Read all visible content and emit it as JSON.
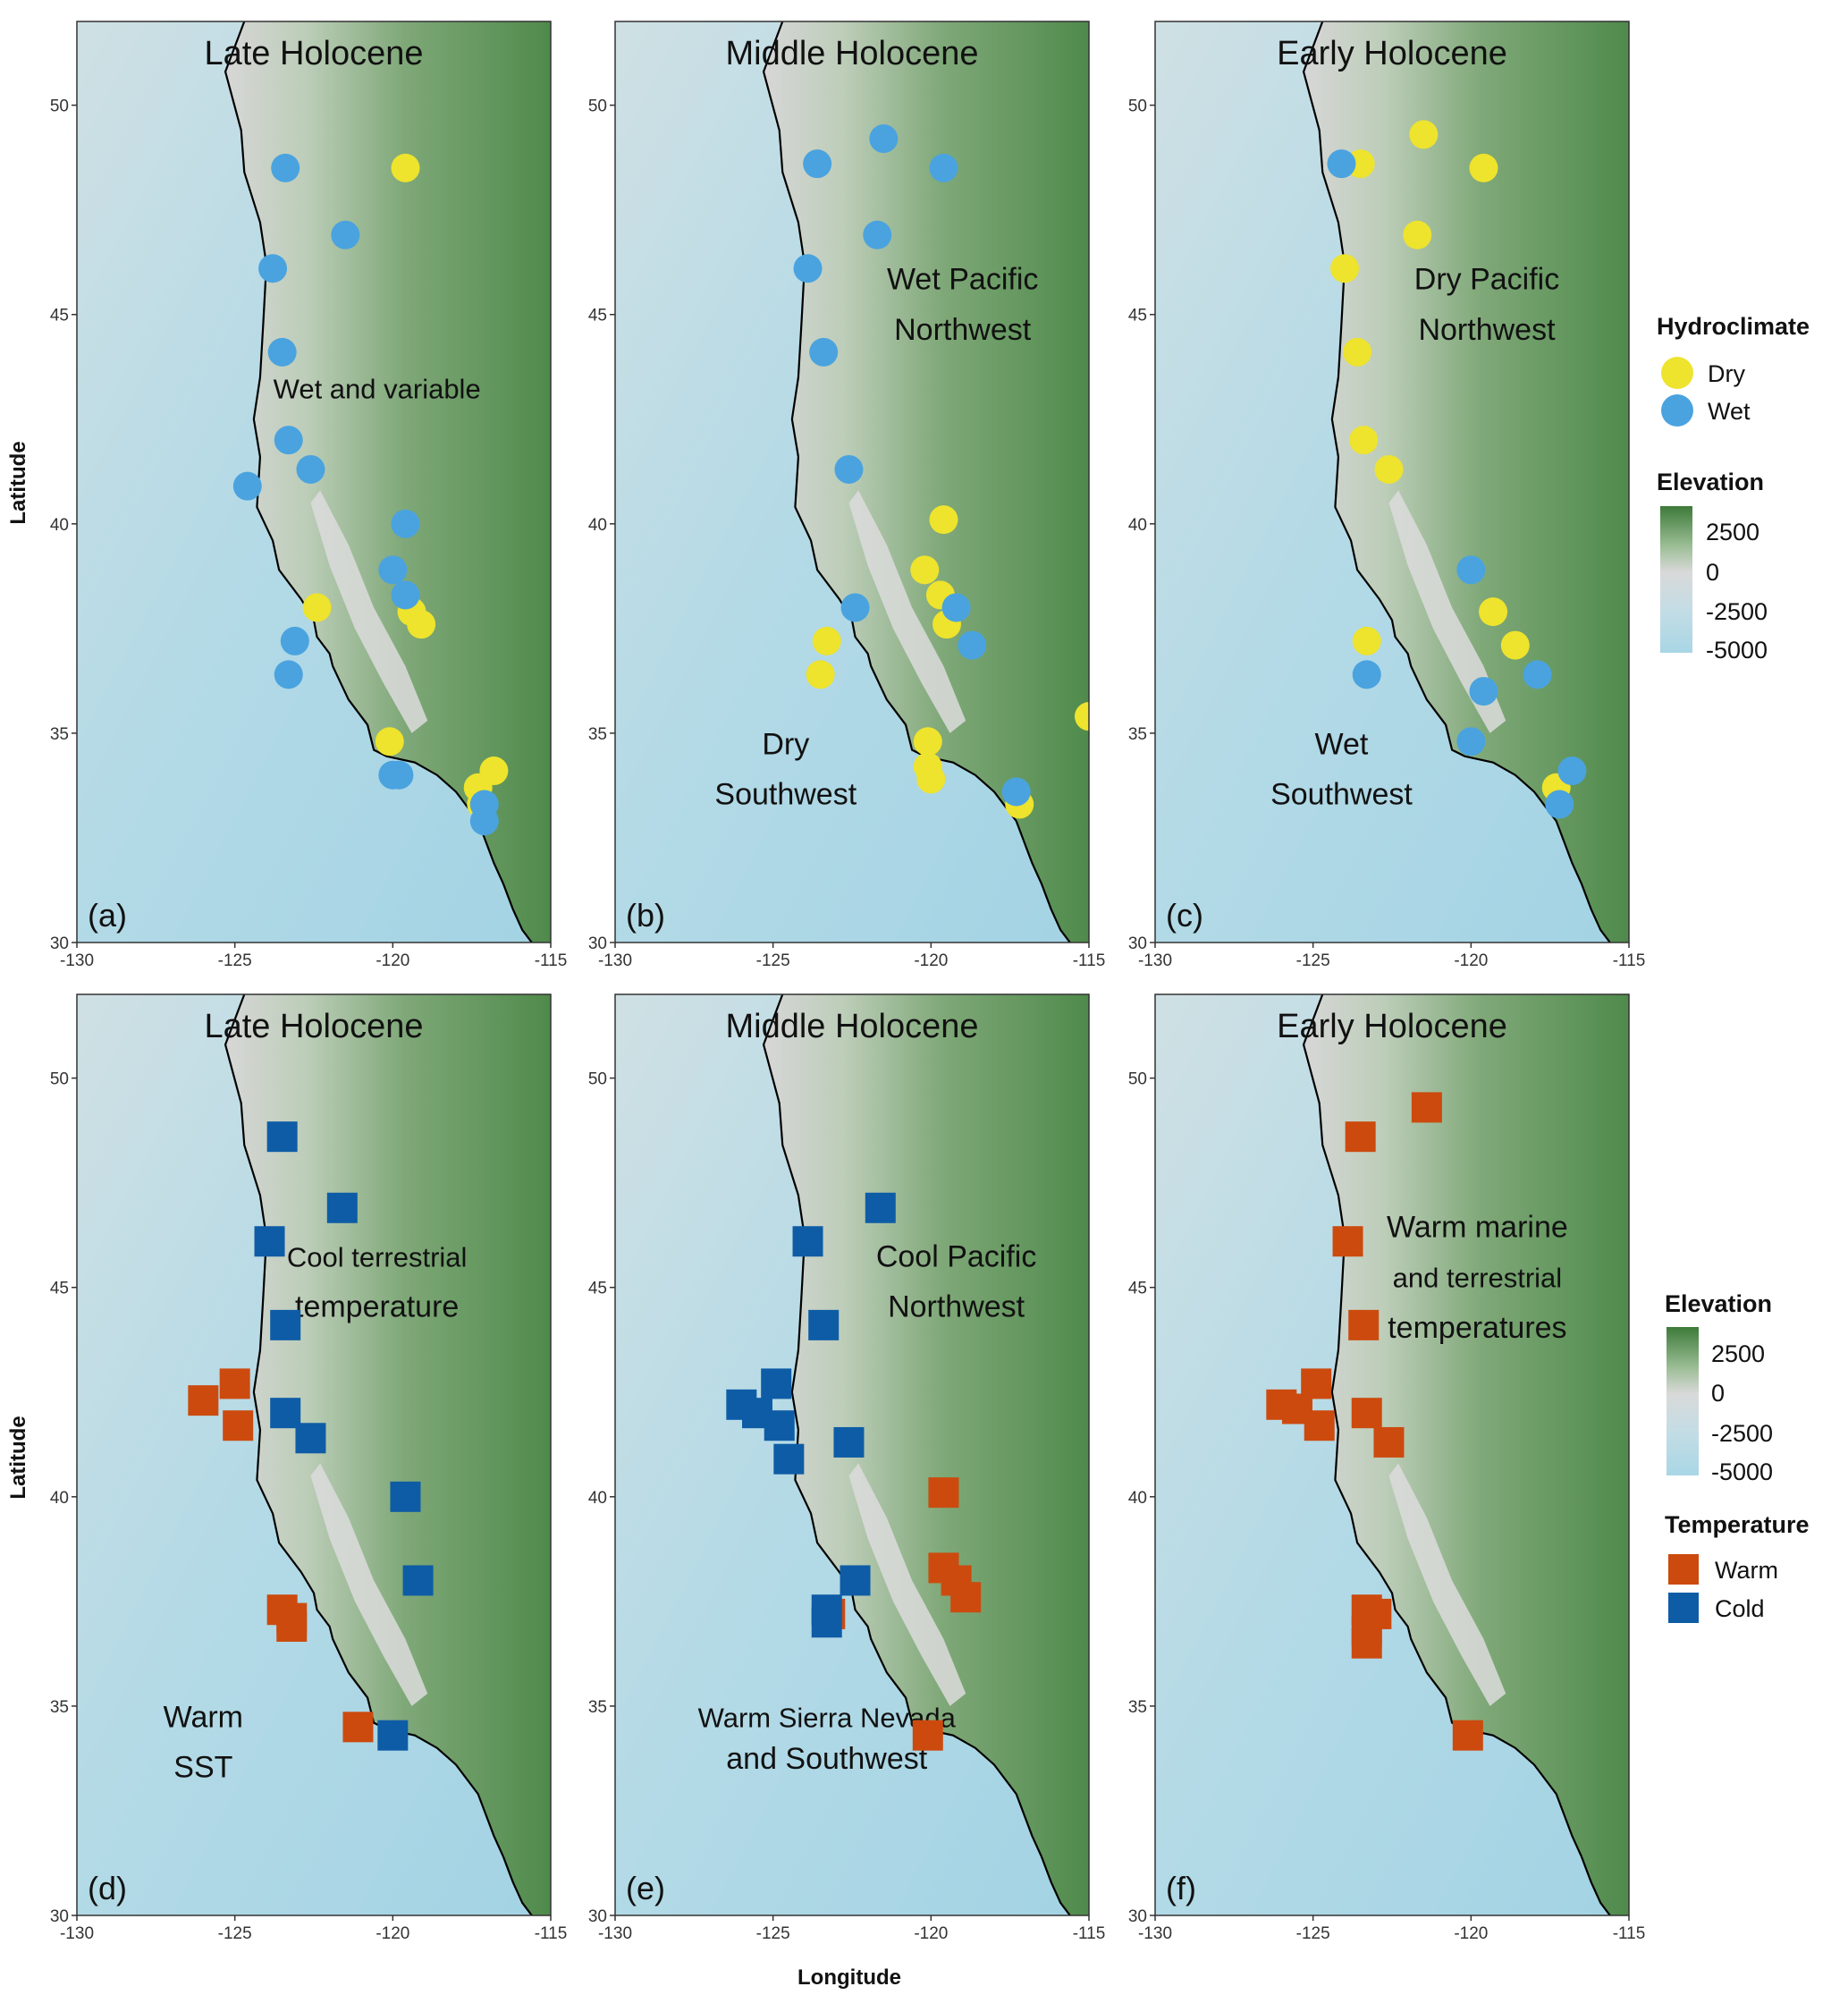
{
  "figure": {
    "y_axis_label": "Latitude",
    "x_axis_label": "Longitude",
    "x_ticks": [
      -130,
      -125,
      -120,
      -115
    ],
    "y_ticks": [
      30,
      35,
      40,
      45,
      50
    ],
    "x_range": [
      -130,
      -115
    ],
    "y_range": [
      30,
      52
    ],
    "panel_labels": [
      "(a)",
      "(b)",
      "(c)",
      "(d)",
      "(e)",
      "(f)"
    ],
    "colors": {
      "dry": "#EEE32D",
      "wet": "#4AA3DF",
      "warm": "#CC4A0E",
      "cold": "#0E5CA6",
      "land_high": "#3D7A39",
      "land_low": "#D9D9D9",
      "ocean": "#A9D6E5"
    }
  },
  "legends": {
    "top": {
      "hydro_title": "Hydroclimate",
      "hydro_items": [
        "Dry",
        "Wet"
      ],
      "elev_title": "Elevation",
      "elev_ticks": [
        "2500",
        "0",
        "-2500",
        "-5000"
      ]
    },
    "bottom": {
      "elev_title": "Elevation",
      "elev_ticks": [
        "2500",
        "0",
        "-2500",
        "-5000"
      ],
      "temp_title": "Temperature",
      "temp_items": [
        "Warm",
        "Cold"
      ]
    }
  },
  "chart_data": [
    {
      "type": "scatter",
      "panel": "(a)",
      "title": "Late Holocene",
      "annotations": [
        {
          "text": "Wet and variable",
          "lon": -120.5,
          "lat": 43.0
        }
      ],
      "series": [
        {
          "name": "Dry",
          "marker": "circle",
          "points": [
            [
              -119.6,
              48.5
            ],
            [
              -122.4,
              38.0
            ],
            [
              -119.1,
              37.6
            ],
            [
              -119.4,
              37.9
            ],
            [
              -120.1,
              34.8
            ],
            [
              -117.3,
              33.7
            ],
            [
              -116.8,
              34.1
            ],
            [
              -117.2,
              33.3
            ]
          ]
        },
        {
          "name": "Wet",
          "marker": "circle",
          "points": [
            [
              -123.4,
              48.5
            ],
            [
              -121.5,
              46.9
            ],
            [
              -123.8,
              46.1
            ],
            [
              -123.5,
              44.1
            ],
            [
              -123.3,
              42.0
            ],
            [
              -122.6,
              41.3
            ],
            [
              -124.6,
              40.9
            ],
            [
              -119.6,
              40.0
            ],
            [
              -120.0,
              38.9
            ],
            [
              -119.6,
              38.3
            ],
            [
              -123.1,
              37.2
            ],
            [
              -123.3,
              36.4
            ],
            [
              -120.0,
              34.0
            ],
            [
              -119.8,
              34.0
            ],
            [
              -117.1,
              33.3
            ],
            [
              -117.1,
              32.9
            ]
          ]
        }
      ]
    },
    {
      "type": "scatter",
      "panel": "(b)",
      "title": "Middle Holocene",
      "annotations": [
        {
          "text": "Wet Pacific",
          "lon": -119.0,
          "lat": 45.6
        },
        {
          "text": "Northwest",
          "lon": -119.0,
          "lat": 44.4
        },
        {
          "text": "Dry",
          "lon": -124.6,
          "lat": 34.5
        },
        {
          "text": "Southwest",
          "lon": -124.6,
          "lat": 33.3
        }
      ],
      "series": [
        {
          "name": "Dry",
          "marker": "circle",
          "points": [
            [
              -119.6,
              40.1
            ],
            [
              -120.2,
              38.9
            ],
            [
              -119.7,
              38.3
            ],
            [
              -119.5,
              37.6
            ],
            [
              -123.3,
              37.2
            ],
            [
              -123.5,
              36.4
            ],
            [
              -120.1,
              34.8
            ],
            [
              -120.1,
              34.2
            ],
            [
              -120.0,
              33.9
            ],
            [
              -117.2,
              33.3
            ],
            [
              -115.0,
              35.4
            ]
          ]
        },
        {
          "name": "Wet",
          "marker": "circle",
          "points": [
            [
              -123.6,
              48.6
            ],
            [
              -121.5,
              49.2
            ],
            [
              -119.6,
              48.5
            ],
            [
              -121.7,
              46.9
            ],
            [
              -123.9,
              46.1
            ],
            [
              -123.4,
              44.1
            ],
            [
              -122.6,
              41.3
            ],
            [
              -122.4,
              38.0
            ],
            [
              -119.2,
              38.0
            ],
            [
              -118.7,
              37.1
            ],
            [
              -117.3,
              33.6
            ]
          ]
        }
      ]
    },
    {
      "type": "scatter",
      "panel": "(c)",
      "title": "Early Holocene",
      "annotations": [
        {
          "text": "Dry Pacific",
          "lon": -119.5,
          "lat": 45.6
        },
        {
          "text": "Northwest",
          "lon": -119.5,
          "lat": 44.4
        },
        {
          "text": "Wet",
          "lon": -124.1,
          "lat": 34.5
        },
        {
          "text": "Southwest",
          "lon": -124.1,
          "lat": 33.3
        }
      ],
      "series": [
        {
          "name": "Dry",
          "marker": "circle",
          "points": [
            [
              -123.5,
              48.6
            ],
            [
              -121.5,
              49.3
            ],
            [
              -119.6,
              48.5
            ],
            [
              -121.7,
              46.9
            ],
            [
              -124.0,
              46.1
            ],
            [
              -123.6,
              44.1
            ],
            [
              -123.4,
              42.0
            ],
            [
              -122.6,
              41.3
            ],
            [
              -119.3,
              37.9
            ],
            [
              -118.6,
              37.1
            ],
            [
              -123.3,
              37.2
            ],
            [
              -117.3,
              33.7
            ]
          ]
        },
        {
          "name": "Wet",
          "marker": "circle",
          "points": [
            [
              -124.1,
              48.6
            ],
            [
              -120.0,
              38.9
            ],
            [
              -117.9,
              36.4
            ],
            [
              -119.6,
              36.0
            ],
            [
              -120.0,
              34.8
            ],
            [
              -116.8,
              34.1
            ],
            [
              -117.2,
              33.3
            ],
            [
              -123.3,
              36.4
            ]
          ]
        }
      ]
    },
    {
      "type": "scatter",
      "panel": "(d)",
      "title": "Late Holocene",
      "annotations": [
        {
          "text": "Cool terrestrial",
          "lon": -120.5,
          "lat": 45.5
        },
        {
          "text": "temperature",
          "lon": -120.5,
          "lat": 44.3
        },
        {
          "text": "Warm",
          "lon": -126.0,
          "lat": 34.5
        },
        {
          "text": "SST",
          "lon": -126.0,
          "lat": 33.3
        }
      ],
      "series": [
        {
          "name": "Warm",
          "marker": "square",
          "points": [
            [
              -125.0,
              42.7
            ],
            [
              -126.0,
              42.3
            ],
            [
              -124.9,
              41.7
            ],
            [
              -123.5,
              37.3
            ],
            [
              -123.2,
              37.1
            ],
            [
              -123.2,
              36.9
            ],
            [
              -121.1,
              34.5
            ]
          ]
        },
        {
          "name": "Cold",
          "marker": "square",
          "points": [
            [
              -123.5,
              48.6
            ],
            [
              -121.6,
              46.9
            ],
            [
              -123.9,
              46.1
            ],
            [
              -123.4,
              44.1
            ],
            [
              -123.4,
              42.0
            ],
            [
              -122.6,
              41.4
            ],
            [
              -119.6,
              40.0
            ],
            [
              -119.2,
              38.0
            ],
            [
              -120.0,
              34.3
            ]
          ]
        }
      ]
    },
    {
      "type": "scatter",
      "panel": "(e)",
      "title": "Middle Holocene",
      "annotations": [
        {
          "text": "Cool Pacific",
          "lon": -119.2,
          "lat": 45.5
        },
        {
          "text": "Northwest",
          "lon": -119.2,
          "lat": 44.3
        },
        {
          "text": "Warm Sierra Nevada",
          "lon": -123.3,
          "lat": 34.5
        },
        {
          "text": "and Southwest",
          "lon": -123.3,
          "lat": 33.5
        }
      ],
      "series": [
        {
          "name": "Warm",
          "marker": "square",
          "points": [
            [
              -119.6,
              40.1
            ],
            [
              -119.6,
              38.3
            ],
            [
              -119.2,
              38.0
            ],
            [
              -118.9,
              37.6
            ],
            [
              -123.2,
              37.2
            ],
            [
              -120.1,
              34.3
            ]
          ]
        },
        {
          "name": "Cold",
          "marker": "square",
          "points": [
            [
              -121.6,
              46.9
            ],
            [
              -123.9,
              46.1
            ],
            [
              -123.4,
              44.1
            ],
            [
              -124.9,
              42.7
            ],
            [
              -126.0,
              42.2
            ],
            [
              -125.5,
              42.0
            ],
            [
              -124.8,
              41.7
            ],
            [
              -124.5,
              40.9
            ],
            [
              -122.6,
              41.3
            ],
            [
              -122.4,
              38.0
            ],
            [
              -123.3,
              37.3
            ],
            [
              -123.3,
              37.0
            ]
          ]
        }
      ]
    },
    {
      "type": "scatter",
      "panel": "(f)",
      "title": "Early Holocene",
      "annotations": [
        {
          "text": "Warm marine",
          "lon": -119.8,
          "lat": 46.2
        },
        {
          "text": "and terrestrial",
          "lon": -119.8,
          "lat": 45.0
        },
        {
          "text": "temperatures",
          "lon": -119.8,
          "lat": 43.8
        }
      ],
      "series": [
        {
          "name": "Warm",
          "marker": "square",
          "points": [
            [
              -121.4,
              49.3
            ],
            [
              -123.5,
              48.6
            ],
            [
              -123.9,
              46.1
            ],
            [
              -123.4,
              44.1
            ],
            [
              -124.9,
              42.7
            ],
            [
              -126.0,
              42.2
            ],
            [
              -125.5,
              42.1
            ],
            [
              -124.8,
              41.7
            ],
            [
              -123.3,
              42.0
            ],
            [
              -122.6,
              41.3
            ],
            [
              -123.3,
              37.3
            ],
            [
              -123.0,
              37.2
            ],
            [
              -123.3,
              36.8
            ],
            [
              -123.3,
              36.5
            ],
            [
              -120.1,
              34.3
            ]
          ]
        },
        {
          "name": "Cold",
          "marker": "square",
          "points": []
        }
      ]
    }
  ]
}
